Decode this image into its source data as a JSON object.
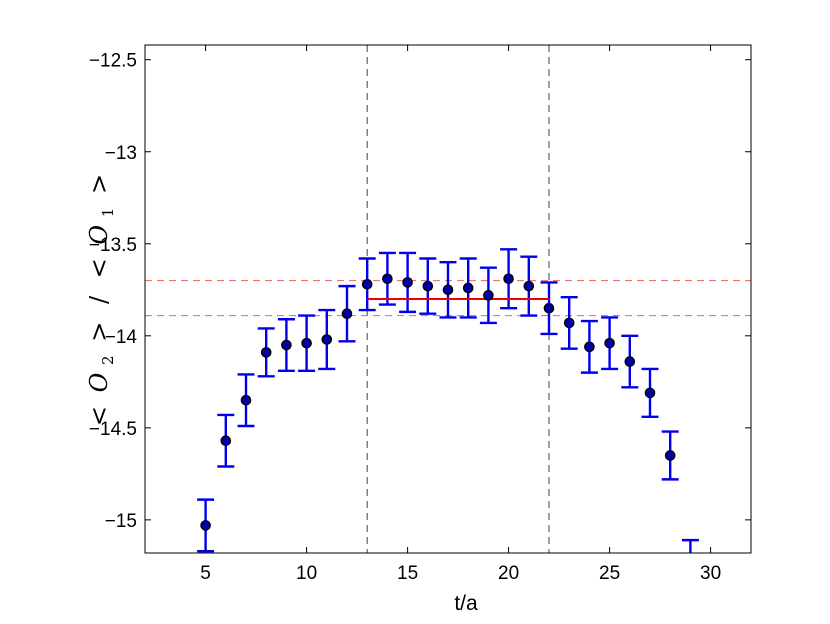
{
  "chart_data": {
    "type": "scatter",
    "xlabel": "t/a",
    "ylabel": "< O_2 > / < O_1 >",
    "ylabel_parts": {
      "open1": "<",
      "sym1": "O",
      "sub1": "2",
      "close1": ">",
      "slash": "/",
      "open2": "<",
      "sym2": "O",
      "sub2": "1",
      "close2": ">"
    },
    "xlim": [
      2,
      32
    ],
    "ylim": [
      -15.18,
      -12.42
    ],
    "xticks": [
      5,
      10,
      15,
      20,
      25,
      30
    ],
    "yticks": [
      -15,
      -14.5,
      -14,
      -13.5,
      -13,
      -12.5
    ],
    "xtick_labels": [
      "5",
      "10",
      "15",
      "20",
      "25",
      "30"
    ],
    "ytick_labels": [
      "−15",
      "−14.5",
      "−14",
      "−13.5",
      "−13",
      "−12.5"
    ],
    "grid": false,
    "series": [
      {
        "marker": "filled-circle",
        "points": [
          {
            "x": 5,
            "y": -15.03,
            "err": 0.14
          },
          {
            "x": 6,
            "y": -14.57,
            "err": 0.14
          },
          {
            "x": 7,
            "y": -14.35,
            "err": 0.14
          },
          {
            "x": 8,
            "y": -14.09,
            "err": 0.13
          },
          {
            "x": 9,
            "y": -14.05,
            "err": 0.14
          },
          {
            "x": 10,
            "y": -14.04,
            "err": 0.15
          },
          {
            "x": 11,
            "y": -14.02,
            "err": 0.16
          },
          {
            "x": 12,
            "y": -13.88,
            "err": 0.15
          },
          {
            "x": 13,
            "y": -13.72,
            "err": 0.14
          },
          {
            "x": 14,
            "y": -13.69,
            "err": 0.14
          },
          {
            "x": 15,
            "y": -13.71,
            "err": 0.16
          },
          {
            "x": 16,
            "y": -13.73,
            "err": 0.15
          },
          {
            "x": 17,
            "y": -13.75,
            "err": 0.15
          },
          {
            "x": 18,
            "y": -13.74,
            "err": 0.16
          },
          {
            "x": 19,
            "y": -13.78,
            "err": 0.15
          },
          {
            "x": 20,
            "y": -13.69,
            "err": 0.16
          },
          {
            "x": 21,
            "y": -13.73,
            "err": 0.16
          },
          {
            "x": 22,
            "y": -13.85,
            "err": 0.14
          },
          {
            "x": 23,
            "y": -13.93,
            "err": 0.14
          },
          {
            "x": 24,
            "y": -14.06,
            "err": 0.14
          },
          {
            "x": 25,
            "y": -14.04,
            "err": 0.14
          },
          {
            "x": 26,
            "y": -14.14,
            "err": 0.14
          },
          {
            "x": 27,
            "y": -14.31,
            "err": 0.13
          },
          {
            "x": 28,
            "y": -14.65,
            "err": 0.13
          },
          {
            "x": 29,
            "y": -15.25,
            "err": 0.14
          }
        ]
      }
    ],
    "fit": {
      "value": -13.8,
      "band": [
        -13.7,
        -13.89
      ],
      "x_range": [
        13,
        22
      ]
    },
    "fit_window_lines": [
      13,
      22
    ],
    "colors": {
      "errorbar": "#0000ee",
      "marker_fill": "#0000aa",
      "marker_edge": "#000000",
      "fit": "#ee0000",
      "fit_band": "#f06060",
      "window_line": "#444444"
    }
  }
}
